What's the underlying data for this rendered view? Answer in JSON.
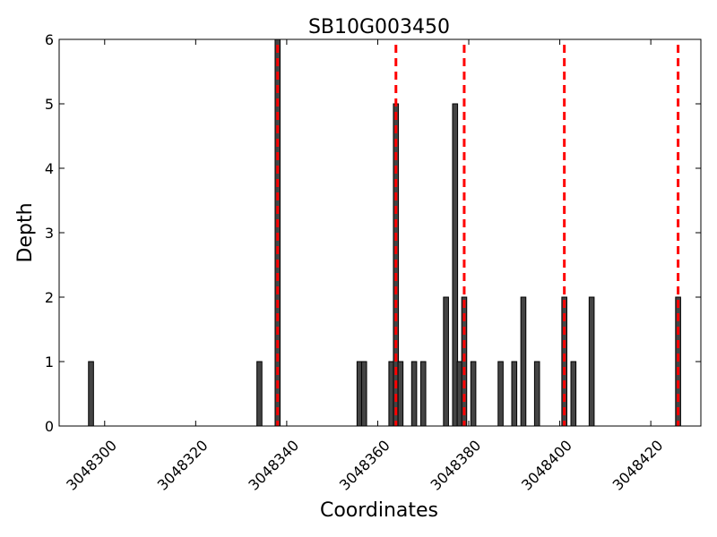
{
  "chart_data": {
    "type": "bar",
    "title": "SB10G003450",
    "xlabel": "Coordinates",
    "ylabel": "Depth",
    "xlim": [
      3048290,
      3048431
    ],
    "ylim": [
      0,
      6
    ],
    "xticks": [
      3048300,
      3048320,
      3048340,
      3048360,
      3048380,
      3048400,
      3048420
    ],
    "yticks": [
      0,
      1,
      2,
      3,
      4,
      5,
      6
    ],
    "bar_color": "#444444",
    "bar_edge_color": "#000000",
    "marker_color": "#ff0000",
    "bar_width": 1,
    "bars": [
      {
        "x": 3048297,
        "y": 1
      },
      {
        "x": 3048334,
        "y": 1
      },
      {
        "x": 3048338,
        "y": 6
      },
      {
        "x": 3048356,
        "y": 1
      },
      {
        "x": 3048357,
        "y": 1
      },
      {
        "x": 3048363,
        "y": 1
      },
      {
        "x": 3048364,
        "y": 5
      },
      {
        "x": 3048365,
        "y": 1
      },
      {
        "x": 3048368,
        "y": 1
      },
      {
        "x": 3048370,
        "y": 1
      },
      {
        "x": 3048375,
        "y": 2
      },
      {
        "x": 3048377,
        "y": 5
      },
      {
        "x": 3048378,
        "y": 1
      },
      {
        "x": 3048379,
        "y": 2
      },
      {
        "x": 3048381,
        "y": 1
      },
      {
        "x": 3048387,
        "y": 1
      },
      {
        "x": 3048390,
        "y": 1
      },
      {
        "x": 3048392,
        "y": 2
      },
      {
        "x": 3048395,
        "y": 1
      },
      {
        "x": 3048401,
        "y": 2
      },
      {
        "x": 3048403,
        "y": 1
      },
      {
        "x": 3048407,
        "y": 2
      },
      {
        "x": 3048426,
        "y": 2
      }
    ],
    "vlines": [
      3048338,
      3048364,
      3048379,
      3048401,
      3048426
    ]
  }
}
